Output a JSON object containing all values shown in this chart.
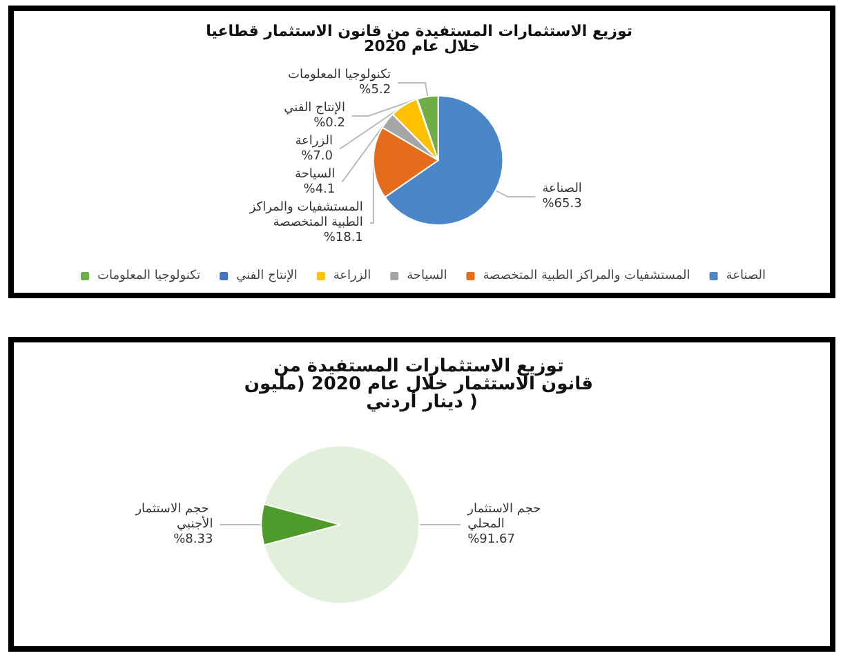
{
  "chart_data": [
    {
      "type": "pie",
      "title": "توزيع الاستثمارات المستفيدة من قانون الاستثمار قطاعيا خلال عام 2020",
      "categories": [
        "الصناعة",
        "المستشفيات والمراكز الطبية المتخصصة",
        "السياحة",
        "الزراعة",
        "الإنتاج الفني",
        "تكنولوجيا المعلومات"
      ],
      "values": [
        65.3,
        18.1,
        4.1,
        7.0,
        0.2,
        5.2
      ],
      "value_labels": [
        "%65.3",
        "%18.1",
        "%4.1",
        "%7.0",
        "%0.2",
        "%5.2"
      ],
      "colors": [
        "#4a86c8",
        "#e46c1a",
        "#a5a5a5",
        "#ffc000",
        "#4472c4",
        "#70ad47"
      ],
      "legend": "bottom"
    },
    {
      "type": "pie",
      "title": "توزيع الاستثمارات المستفيدة من قانون الاستثمار خلال عام 2020 (مليون دينار أردني )",
      "categories": [
        "حجم الاستثمار المحلي",
        "حجم الاستثمار الأجنبي"
      ],
      "values": [
        91.67,
        8.33
      ],
      "value_labels": [
        "%91.67",
        "%8.33"
      ],
      "colors": [
        "#e2efda",
        "#4e9a2a"
      ]
    }
  ]
}
